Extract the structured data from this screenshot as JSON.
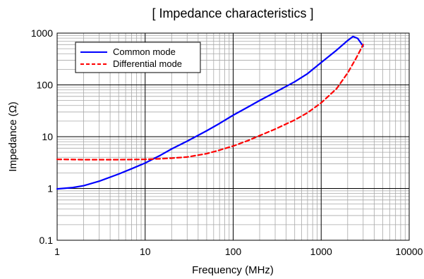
{
  "chart_data": {
    "type": "line",
    "title": "[ Impedance characteristics ]",
    "xlabel": "Frequency (MHz)",
    "ylabel": "Impedance (Ω)",
    "xscale": "log",
    "yscale": "log",
    "xlim": [
      1,
      10000
    ],
    "ylim": [
      0.1,
      1000
    ],
    "grid": true,
    "legend_position": "top-left",
    "x_ticks": [
      "1",
      "10",
      "100",
      "1000",
      "10000"
    ],
    "y_ticks": [
      "0.1",
      "1",
      "10",
      "100",
      "1000"
    ],
    "series": [
      {
        "name": "Common mode",
        "color": "#0000ff",
        "style": "solid",
        "x": [
          1,
          1.5,
          2,
          3,
          5,
          7,
          10,
          15,
          20,
          30,
          50,
          70,
          100,
          150,
          200,
          300,
          500,
          700,
          1000,
          1500,
          2000,
          2300,
          2600,
          3000
        ],
        "y": [
          0.98,
          1.04,
          1.13,
          1.38,
          1.9,
          2.4,
          3.1,
          4.4,
          5.8,
          8.2,
          13,
          18,
          26,
          38,
          50,
          72,
          115,
          165,
          270,
          470,
          720,
          860,
          790,
          560
        ]
      },
      {
        "name": "Differential mode",
        "color": "#ff0000",
        "style": "dashed",
        "x": [
          1,
          2,
          3,
          5,
          7,
          10,
          15,
          20,
          30,
          50,
          70,
          100,
          150,
          200,
          300,
          500,
          700,
          1000,
          1500,
          2000,
          2500,
          3000
        ],
        "y": [
          3.65,
          3.6,
          3.6,
          3.6,
          3.62,
          3.65,
          3.75,
          3.85,
          4.05,
          4.7,
          5.5,
          6.6,
          8.5,
          10.5,
          14,
          21,
          29,
          45,
          85,
          170,
          330,
          600
        ]
      }
    ]
  }
}
